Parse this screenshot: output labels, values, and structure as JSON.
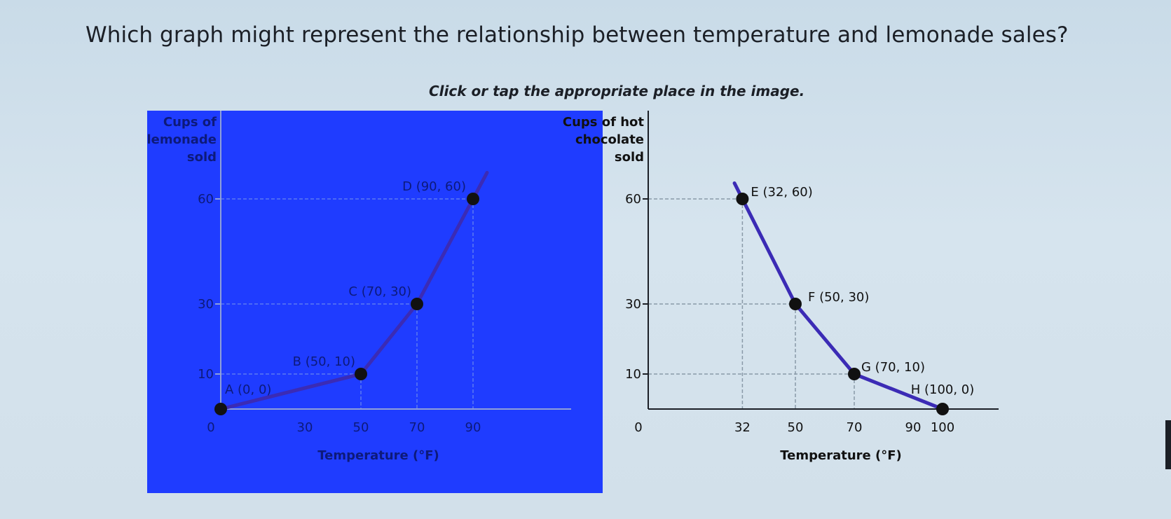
{
  "question": "Which graph might represent the relationship between temperature and lemonade sales?",
  "instruction": "Click or tap the appropriate place in the image.",
  "colors": {
    "left_background": "#1f3cff",
    "curve": "#3b2bb5",
    "point": "#111111",
    "axis_left": "#8fa0d8",
    "axis_right": "#1b1f26",
    "page_background": "#d2e0ea"
  },
  "chart_data": [
    {
      "type": "line",
      "ylabel": [
        "Cups of",
        "lemonade",
        "sold"
      ],
      "xlabel": "Temperature (°F)",
      "x_ticks": [
        "0",
        "30",
        "50",
        "70",
        "90"
      ],
      "y_ticks": [
        "10",
        "30",
        "60"
      ],
      "points": [
        {
          "label": "A (0, 0)",
          "x": 0,
          "y": 0
        },
        {
          "label": "B (50, 10)",
          "x": 50,
          "y": 10
        },
        {
          "label": "C (70, 30)",
          "x": 70,
          "y": 30
        },
        {
          "label": "D (90, 60)",
          "x": 90,
          "y": 60
        }
      ],
      "xlim": [
        0,
        110
      ],
      "ylim": [
        0,
        75
      ],
      "grid": false
    },
    {
      "type": "line",
      "ylabel": [
        "Cups of hot",
        "chocolate",
        "sold"
      ],
      "xlabel": "Temperature (°F)",
      "x_ticks": [
        "0",
        "32",
        "50",
        "70",
        "90",
        "100"
      ],
      "y_ticks": [
        "10",
        "30",
        "60"
      ],
      "points": [
        {
          "label": "E (32, 60)",
          "x": 32,
          "y": 60
        },
        {
          "label": "F (50, 30)",
          "x": 50,
          "y": 30
        },
        {
          "label": "G (70, 10)",
          "x": 70,
          "y": 10
        },
        {
          "label": "H (100, 0)",
          "x": 100,
          "y": 0
        }
      ],
      "xlim": [
        0,
        115
      ],
      "ylim": [
        0,
        75
      ],
      "grid": false
    }
  ]
}
